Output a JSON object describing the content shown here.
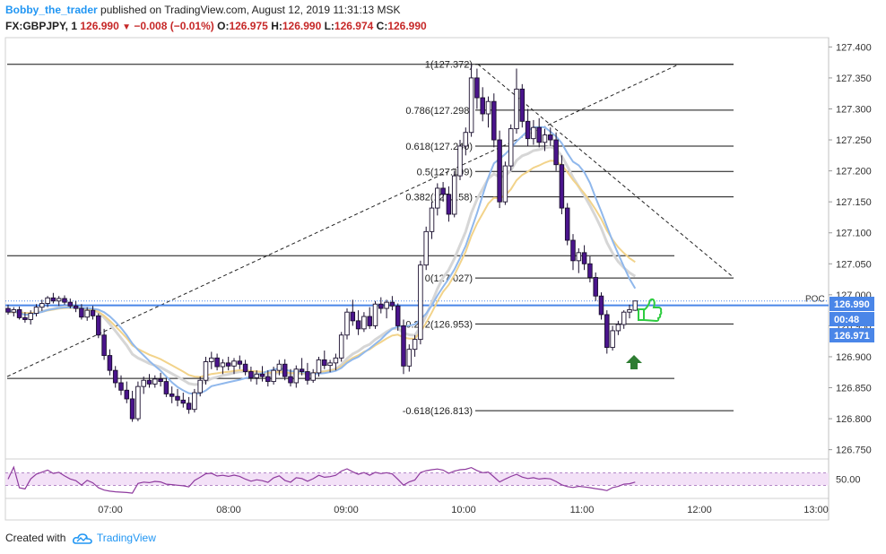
{
  "header": {
    "author": "Bobby_the_trader",
    "published_text": "published on TradingView.com, August 12, 2019 11:31:13 MSK",
    "symbol": "FX:GBPJPY, 1",
    "last": "126.990",
    "change": "−0.008 (−0.01%)",
    "o_label": "O:",
    "o": "126.975",
    "h_label": "H:",
    "h": "126.990",
    "l_label": "L:",
    "l": "126.974",
    "c_label": "C:",
    "c": "126.990"
  },
  "footer": {
    "created_with": "Created with",
    "brand": "TradingView",
    "logo_icon": "tradingview-cloud-icon"
  },
  "colors": {
    "up": "#ffffff",
    "down": "#4a148c",
    "outline": "#1a0f2e",
    "ma_blue": "#90b8ec",
    "ma_orange": "#f2d38a",
    "ma_gray": "#d6d6d6",
    "poc": "#4a86e8",
    "rsi": "#8e3a9e",
    "rsi_band": "#f3e1f7",
    "thumb": "#2ecc40",
    "arrow": "#2e7d32"
  },
  "chart_data": {
    "type": "candlestick",
    "symbol": "FX:GBPJPY",
    "interval": "1",
    "y_ticks": [
      "127.400",
      "127.350",
      "127.300",
      "127.250",
      "127.200",
      "127.150",
      "127.100",
      "127.050",
      "127.000",
      "126.950",
      "126.900",
      "126.850",
      "126.800",
      "126.750"
    ],
    "x_ticks": [
      "07:00",
      "08:00",
      "09:00",
      "10:00",
      "11:00",
      "12:00",
      "13:00"
    ],
    "ylim": [
      126.735,
      127.415
    ],
    "fibonacci": [
      {
        "label": "1(127.372)",
        "level": "1",
        "value": 127.372
      },
      {
        "label": "0.786(127.298)",
        "level": "0.786",
        "value": 127.298
      },
      {
        "label": "0.618(127.240)",
        "level": "0.618",
        "value": 127.24
      },
      {
        "label": "0.5(127.199)",
        "level": "0.5",
        "value": 127.199
      },
      {
        "label": "0.382(127.158)",
        "level": "0.382",
        "value": 127.158
      },
      {
        "label": "0(127.027)",
        "level": "0",
        "value": 127.027
      },
      {
        "label": "0.272(126.953)",
        "level": "0.272",
        "value": 126.953
      },
      {
        "label": "-0.618(126.813)",
        "level": "-0.618",
        "value": 126.813
      }
    ],
    "horizontal_levels": [
      127.372,
      127.063,
      126.865
    ],
    "poc": {
      "label": "POC",
      "value": 126.983
    },
    "price_labels": [
      {
        "text": "126.990",
        "value": 126.99,
        "color": "#4a86e8"
      },
      {
        "text": "00:48",
        "value": 126.982,
        "color": "#4a86e8"
      },
      {
        "text": "126.971",
        "value": 126.971,
        "color": "#4a86e8"
      }
    ],
    "rsi": {
      "label": "50.00",
      "ylim": [
        0,
        100
      ],
      "upper": 70,
      "lower": 30
    },
    "candles": [
      [
        0,
        126.978,
        126.984,
        126.968,
        126.972
      ],
      [
        1,
        126.972,
        126.98,
        126.965,
        126.976
      ],
      [
        2,
        126.976,
        126.981,
        126.96,
        126.963
      ],
      [
        3,
        126.963,
        126.972,
        126.955,
        126.96
      ],
      [
        4,
        126.96,
        126.975,
        126.952,
        126.97
      ],
      [
        5,
        126.97,
        126.985,
        126.965,
        126.98
      ],
      [
        6,
        126.98,
        126.992,
        126.974,
        126.986
      ],
      [
        7,
        126.986,
        126.998,
        126.98,
        126.995
      ],
      [
        8,
        126.995,
        127.003,
        126.986,
        126.99
      ],
      [
        9,
        126.99,
        126.998,
        126.982,
        126.994
      ],
      [
        10,
        126.994,
        126.999,
        126.984,
        126.988
      ],
      [
        11,
        126.988,
        126.994,
        126.978,
        126.982
      ],
      [
        12,
        126.982,
        126.99,
        126.972,
        126.978
      ],
      [
        13,
        126.978,
        126.985,
        126.96,
        126.964
      ],
      [
        14,
        126.964,
        126.98,
        126.958,
        126.975
      ],
      [
        15,
        126.975,
        126.982,
        126.96,
        126.966
      ],
      [
        16,
        126.966,
        126.97,
        126.93,
        126.935
      ],
      [
        17,
        126.935,
        126.945,
        126.895,
        126.902
      ],
      [
        18,
        126.902,
        126.912,
        126.87,
        126.878
      ],
      [
        19,
        126.878,
        126.885,
        126.85,
        126.858
      ],
      [
        20,
        126.858,
        126.87,
        126.838,
        126.846
      ],
      [
        21,
        126.846,
        126.86,
        126.825,
        126.832
      ],
      [
        22,
        126.832,
        126.845,
        126.795,
        126.8
      ],
      [
        23,
        126.8,
        126.86,
        126.796,
        126.852
      ],
      [
        24,
        126.852,
        126.868,
        126.84,
        126.862
      ],
      [
        25,
        126.862,
        126.872,
        126.85,
        126.856
      ],
      [
        26,
        126.856,
        126.87,
        126.85,
        126.864
      ],
      [
        27,
        126.864,
        126.874,
        126.852,
        126.86
      ],
      [
        28,
        126.86,
        126.866,
        126.835,
        126.84
      ],
      [
        29,
        126.84,
        126.852,
        126.825,
        126.836
      ],
      [
        30,
        126.836,
        126.848,
        126.82,
        126.83
      ],
      [
        31,
        126.83,
        126.842,
        126.818,
        126.825
      ],
      [
        32,
        126.825,
        126.835,
        126.808,
        126.815
      ],
      [
        33,
        126.815,
        126.848,
        126.81,
        126.842
      ],
      [
        34,
        126.842,
        126.868,
        126.836,
        126.862
      ],
      [
        35,
        126.862,
        126.9,
        126.855,
        126.892
      ],
      [
        36,
        126.892,
        126.908,
        126.88,
        126.898
      ],
      [
        37,
        126.898,
        126.905,
        126.878,
        126.884
      ],
      [
        38,
        126.884,
        126.896,
        126.872,
        126.89
      ],
      [
        39,
        126.89,
        126.9,
        126.878,
        126.885
      ],
      [
        40,
        126.885,
        126.898,
        126.872,
        126.893
      ],
      [
        41,
        126.893,
        126.902,
        126.88,
        126.888
      ],
      [
        42,
        126.888,
        126.895,
        126.87,
        126.876
      ],
      [
        43,
        126.876,
        126.884,
        126.86,
        126.866
      ],
      [
        44,
        126.866,
        126.878,
        126.855,
        126.872
      ],
      [
        45,
        126.872,
        126.885,
        126.86,
        126.868
      ],
      [
        46,
        126.868,
        126.878,
        126.852,
        126.86
      ],
      [
        47,
        126.86,
        126.884,
        126.855,
        126.878
      ],
      [
        48,
        126.878,
        126.895,
        126.87,
        126.888
      ],
      [
        49,
        126.888,
        126.896,
        126.862,
        126.868
      ],
      [
        50,
        126.868,
        126.88,
        126.852,
        126.858
      ],
      [
        51,
        126.858,
        126.886,
        126.85,
        126.88
      ],
      [
        52,
        126.88,
        126.898,
        126.87,
        126.876
      ],
      [
        53,
        126.876,
        126.89,
        126.855,
        126.862
      ],
      [
        54,
        126.862,
        126.88,
        126.858,
        126.874
      ],
      [
        55,
        126.874,
        126.9,
        126.868,
        126.895
      ],
      [
        56,
        126.895,
        126.91,
        126.88,
        126.886
      ],
      [
        57,
        126.886,
        126.895,
        126.875,
        126.89
      ],
      [
        58,
        126.89,
        126.905,
        126.878,
        126.898
      ],
      [
        59,
        126.898,
        126.94,
        126.892,
        126.935
      ],
      [
        60,
        126.935,
        126.978,
        126.928,
        126.972
      ],
      [
        61,
        126.972,
        126.992,
        126.95,
        126.958
      ],
      [
        62,
        126.958,
        126.975,
        126.935,
        126.945
      ],
      [
        63,
        126.945,
        126.972,
        126.94,
        126.965
      ],
      [
        64,
        126.965,
        126.98,
        126.945,
        126.95
      ],
      [
        65,
        126.95,
        126.99,
        126.945,
        126.985
      ],
      [
        66,
        126.985,
        126.996,
        126.97,
        126.978
      ],
      [
        67,
        126.978,
        126.992,
        126.962,
        126.988
      ],
      [
        68,
        126.988,
        126.998,
        126.975,
        126.982
      ],
      [
        69,
        126.982,
        126.986,
        126.942,
        126.95
      ],
      [
        70,
        126.95,
        126.96,
        126.872,
        126.885
      ],
      [
        71,
        126.885,
        126.92,
        126.876,
        126.912
      ],
      [
        72,
        126.912,
        126.935,
        126.9,
        126.928
      ],
      [
        73,
        126.928,
        127.055,
        126.92,
        127.048
      ],
      [
        74,
        127.048,
        127.11,
        127.04,
        127.102
      ],
      [
        75,
        127.102,
        127.15,
        127.09,
        127.14
      ],
      [
        76,
        127.14,
        127.18,
        127.128,
        127.172
      ],
      [
        77,
        127.172,
        127.182,
        127.15,
        127.162
      ],
      [
        78,
        127.162,
        127.175,
        127.118,
        127.13
      ],
      [
        79,
        127.13,
        127.2,
        127.125,
        127.192
      ],
      [
        80,
        127.192,
        127.25,
        127.185,
        127.24
      ],
      [
        81,
        127.24,
        127.27,
        127.225,
        127.262
      ],
      [
        82,
        127.262,
        127.372,
        127.255,
        127.35
      ],
      [
        83,
        127.35,
        127.365,
        127.3,
        127.318
      ],
      [
        84,
        127.318,
        127.335,
        127.28,
        127.292
      ],
      [
        85,
        127.292,
        127.32,
        127.27,
        127.312
      ],
      [
        86,
        127.312,
        127.325,
        127.238,
        127.25
      ],
      [
        87,
        127.25,
        127.265,
        127.14,
        127.15
      ],
      [
        88,
        127.15,
        127.215,
        127.145,
        127.208
      ],
      [
        89,
        127.208,
        127.275,
        127.2,
        127.268
      ],
      [
        90,
        127.268,
        127.365,
        127.26,
        127.332
      ],
      [
        91,
        127.332,
        127.34,
        127.27,
        127.28
      ],
      [
        92,
        127.28,
        127.3,
        127.24,
        127.252
      ],
      [
        93,
        127.252,
        127.282,
        127.242,
        127.27
      ],
      [
        94,
        127.27,
        127.285,
        127.238,
        127.246
      ],
      [
        95,
        127.246,
        127.268,
        127.232,
        127.258
      ],
      [
        96,
        127.258,
        127.27,
        127.24,
        127.25
      ],
      [
        97,
        127.25,
        127.262,
        127.2,
        127.21
      ],
      [
        98,
        127.21,
        127.225,
        127.13,
        127.14
      ],
      [
        99,
        127.14,
        127.148,
        127.08,
        127.088
      ],
      [
        100,
        127.088,
        127.098,
        127.04,
        127.055
      ],
      [
        101,
        127.055,
        127.075,
        127.035,
        127.068
      ],
      [
        102,
        127.068,
        127.08,
        127.04,
        127.05
      ],
      [
        103,
        127.05,
        127.062,
        127.02,
        127.028
      ],
      [
        104,
        127.028,
        127.036,
        126.99,
        126.998
      ],
      [
        105,
        126.998,
        127.004,
        126.96,
        126.968
      ],
      [
        106,
        126.968,
        126.975,
        126.905,
        126.915
      ],
      [
        107,
        126.915,
        126.95,
        126.91,
        126.942
      ],
      [
        108,
        126.942,
        126.958,
        126.935,
        126.952
      ],
      [
        109,
        126.952,
        126.975,
        126.945,
        126.972
      ],
      [
        110,
        126.972,
        126.984,
        126.962,
        126.976
      ],
      [
        111,
        126.975,
        126.99,
        126.974,
        126.99
      ]
    ]
  }
}
